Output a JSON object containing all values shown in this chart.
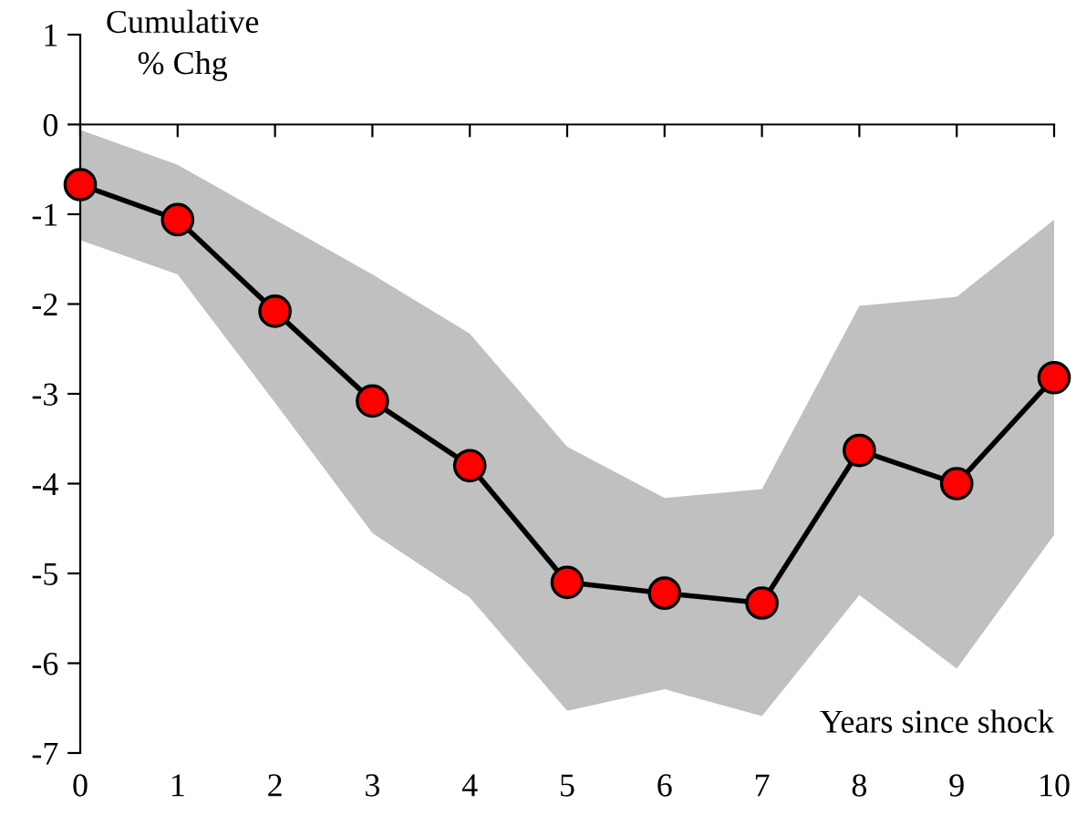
{
  "chart_data": {
    "type": "line",
    "xlabel": "Years since shock",
    "ylabel": "Cumulative\n% Chg",
    "x": [
      0,
      1,
      2,
      3,
      4,
      5,
      6,
      7,
      8,
      9,
      10
    ],
    "series": [
      {
        "color": "#ff0000",
        "values": [
          -0.67,
          -1.06,
          -2.08,
          -3.08,
          -3.8,
          -5.1,
          -5.22,
          -5.33,
          -3.63,
          -4.0,
          -2.82
        ],
        "lower": [
          -1.29,
          -1.67,
          -3.1,
          -4.55,
          -5.27,
          -6.53,
          -6.29,
          -6.59,
          -5.24,
          -6.06,
          -4.57
        ],
        "upper": [
          -0.06,
          -0.45,
          -1.06,
          -1.67,
          -2.33,
          -3.59,
          -4.16,
          -4.06,
          -2.02,
          -1.92,
          -1.06
        ]
      }
    ],
    "xlim": [
      0,
      10
    ],
    "xticks": [
      0,
      1,
      2,
      3,
      4,
      5,
      6,
      7,
      8,
      9,
      10
    ],
    "ylim": [
      -7,
      1
    ],
    "yticks": [
      -7,
      -6,
      -5,
      -4,
      -3,
      -2,
      -1,
      0,
      1
    ],
    "marker": "circle",
    "line_style": "solid"
  }
}
